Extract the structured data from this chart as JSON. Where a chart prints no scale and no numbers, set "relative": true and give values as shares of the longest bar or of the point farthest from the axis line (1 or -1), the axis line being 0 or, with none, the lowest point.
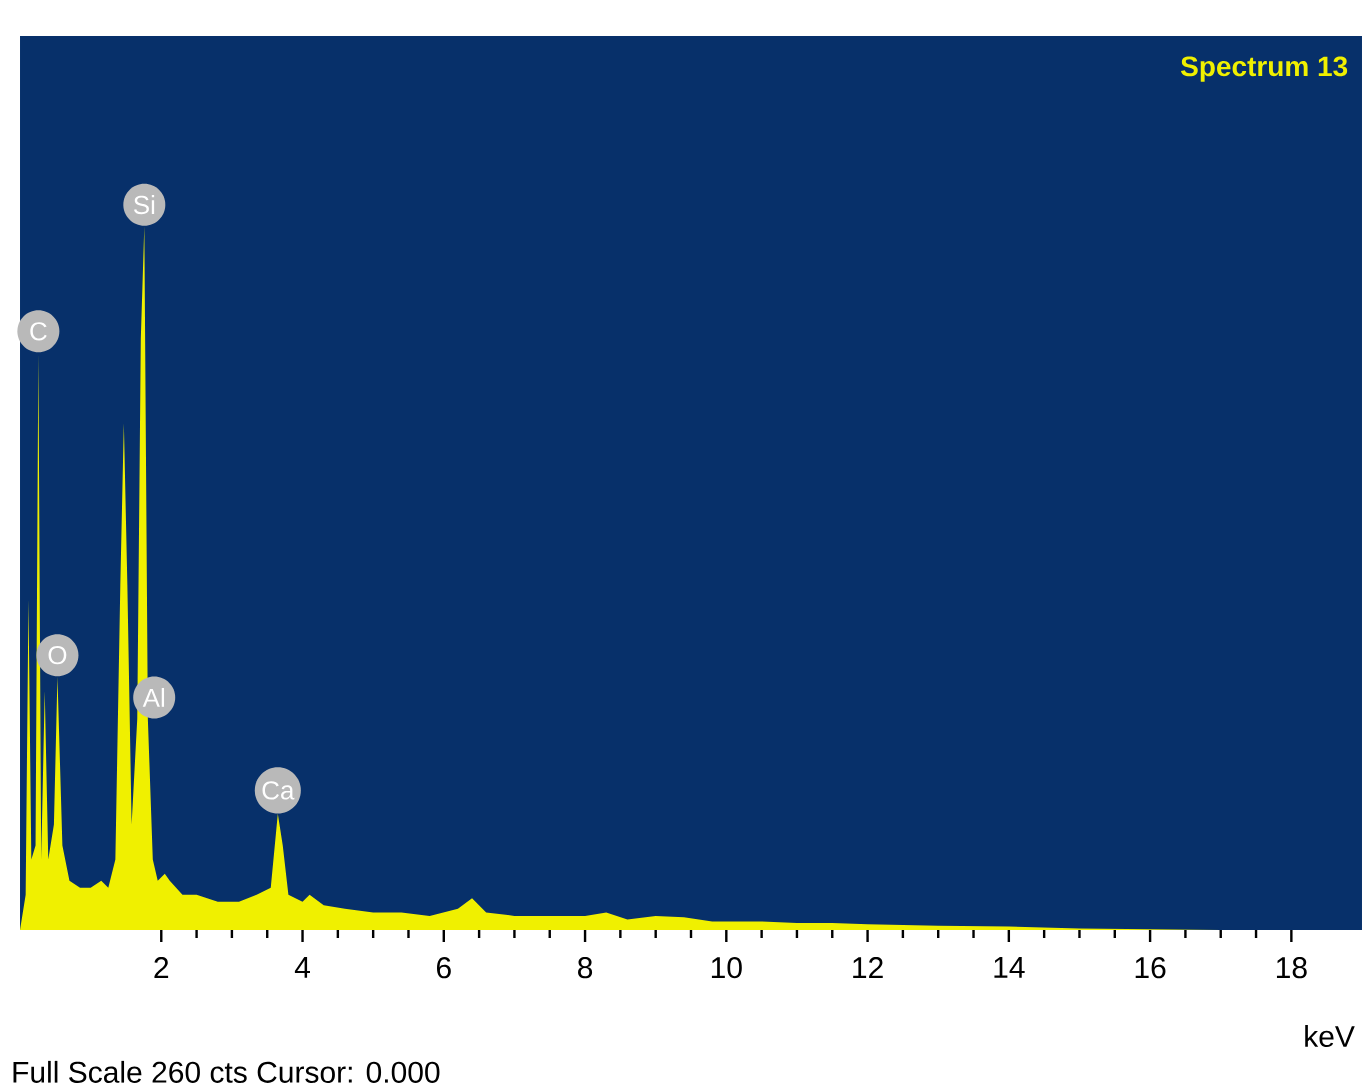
{
  "chart_data": {
    "type": "area",
    "title": "Spectrum 13",
    "xlabel": "keV",
    "relative": true,
    "color": "#f0f000",
    "x": [
      0.0,
      0.08,
      0.12,
      0.16,
      0.22,
      0.26,
      0.3,
      0.35,
      0.4,
      0.48,
      0.53,
      0.6,
      0.7,
      0.85,
      1.0,
      1.15,
      1.25,
      1.35,
      1.42,
      1.47,
      1.52,
      1.58,
      1.66,
      1.71,
      1.76,
      1.81,
      1.88,
      1.95,
      2.05,
      2.12,
      2.3,
      2.5,
      2.8,
      3.1,
      3.35,
      3.55,
      3.65,
      3.72,
      3.8,
      4.0,
      4.1,
      4.3,
      4.6,
      5.0,
      5.4,
      5.8,
      6.2,
      6.4,
      6.6,
      7.0,
      7.5,
      8.0,
      8.3,
      8.6,
      9.0,
      9.4,
      9.8,
      10.5,
      11.0,
      11.5,
      12.0,
      13.0,
      14.0,
      15.0,
      16.0,
      17.0,
      18.0,
      19.0
    ],
    "values": [
      0,
      0.05,
      0.47,
      0.1,
      0.12,
      0.82,
      0.1,
      0.34,
      0.1,
      0.15,
      0.36,
      0.12,
      0.07,
      0.06,
      0.06,
      0.07,
      0.06,
      0.1,
      0.49,
      0.72,
      0.49,
      0.15,
      0.3,
      0.84,
      1.0,
      0.3,
      0.1,
      0.07,
      0.08,
      0.07,
      0.05,
      0.05,
      0.04,
      0.04,
      0.05,
      0.06,
      0.165,
      0.12,
      0.05,
      0.04,
      0.05,
      0.035,
      0.03,
      0.025,
      0.025,
      0.02,
      0.03,
      0.045,
      0.025,
      0.02,
      0.02,
      0.02,
      0.025,
      0.015,
      0.02,
      0.018,
      0.012,
      0.012,
      0.01,
      0.01,
      0.008,
      0.006,
      0.005,
      0.002,
      0.001,
      0,
      0,
      0
    ],
    "xlim": [
      0,
      19
    ],
    "xticks": [
      2,
      4,
      6,
      8,
      10,
      12,
      14,
      16,
      18
    ],
    "annotations": [
      {
        "text": "C",
        "x": 0.26,
        "y": 0.82
      },
      {
        "text": "Si",
        "x": 1.76,
        "y": 1.0
      },
      {
        "text": "O",
        "x": 0.53,
        "y": 0.36
      },
      {
        "text": "Al",
        "x": 1.9,
        "y": 0.3
      },
      {
        "text": "Ca",
        "x": 3.65,
        "y": 0.165
      },
      "Full Scale 260 cts Cursor: 0.000"
    ]
  }
}
